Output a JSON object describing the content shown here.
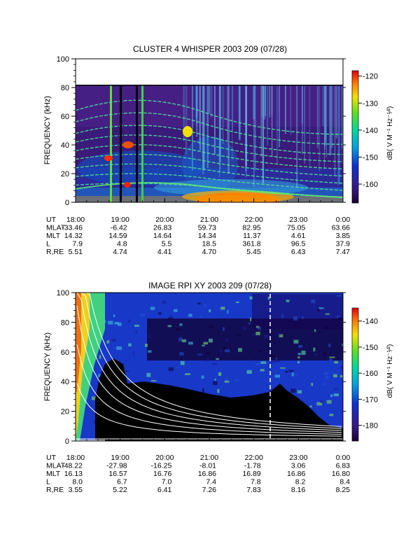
{
  "chart_data": [
    {
      "type": "heatmap",
      "title": "CLUSTER 4 WHISPER 2003 209 (07/28)",
      "ylabel": "FREQUENCY (kHz)",
      "ylim": [
        0,
        100
      ],
      "yticks": [
        "0",
        "20",
        "40",
        "60",
        "80",
        "100"
      ],
      "xticks": [
        "18:00",
        "19:00",
        "20:00",
        "21:00",
        "22:00",
        "23:00",
        "0:00"
      ],
      "colorbar": {
        "label": "dB( V M⁻¹ Hz⁻¹⁄²)",
        "ticks": [
          "-120",
          "-130",
          "-140",
          "-150",
          "-160"
        ],
        "range": [
          -167,
          -118
        ]
      },
      "ephemeris": [
        {
          "label": "UT",
          "values": [
            "18:00",
            "19:00",
            "20:00",
            "21:00",
            "22:00",
            "23:00",
            "0:00"
          ]
        },
        {
          "label": "MLAT",
          "values": [
            "-33.46",
            "-6.42",
            "26.83",
            "59.73",
            "82.95",
            "75.05",
            "63.66"
          ]
        },
        {
          "label": "MLT",
          "values": [
            "14.32",
            "14.59",
            "14.64",
            "14.34",
            "11.37",
            "4.61",
            "3.85"
          ]
        },
        {
          "label": "L",
          "values": [
            "7.9",
            "4.8",
            "5.5",
            "18.5",
            "361.8",
            "96.5",
            "37.9"
          ]
        },
        {
          "label": "R,RE",
          "values": [
            "5.51",
            "4.74",
            "4.41",
            "4.70",
            "5.45",
            "6.43",
            "7.47"
          ]
        }
      ]
    },
    {
      "type": "heatmap",
      "title": "IMAGE RPI XY 2003 209 (07/28)",
      "ylabel": "FREQUENCY (kHz)",
      "ylim": [
        0,
        100
      ],
      "yticks": [
        "0",
        "20",
        "40",
        "60",
        "80",
        "100"
      ],
      "xticks": [
        "18:00",
        "19:00",
        "20:00",
        "21:00",
        "22:00",
        "23:00",
        "0:00"
      ],
      "colorbar": {
        "label": "dB( V M⁻¹ Hz⁻¹⁄²)",
        "ticks": [
          "-140",
          "-150",
          "-160",
          "-170",
          "-180"
        ],
        "range": [
          -186,
          -135
        ]
      },
      "ephemeris": [
        {
          "label": "UT",
          "values": [
            "18:00",
            "19:00",
            "20:00",
            "21:00",
            "22:00",
            "23:00",
            "0:00"
          ]
        },
        {
          "label": "MLAT",
          "values": [
            "-48.22",
            "-27.98",
            "-16.25",
            "-8.01",
            "-1.78",
            "3.06",
            "6.83"
          ]
        },
        {
          "label": "MLT",
          "values": [
            "16.13",
            "16.57",
            "16.76",
            "16.86",
            "16.89",
            "16.86",
            "16.80"
          ]
        },
        {
          "label": "L",
          "values": [
            "8.0",
            "6.7",
            "7.0",
            "7.4",
            "7.8",
            "8.2",
            "8.4"
          ]
        },
        {
          "label": "R,RE",
          "values": [
            "3.55",
            "5.22",
            "6.41",
            "7.26",
            "7.83",
            "8.16",
            "8.25"
          ]
        }
      ]
    }
  ]
}
